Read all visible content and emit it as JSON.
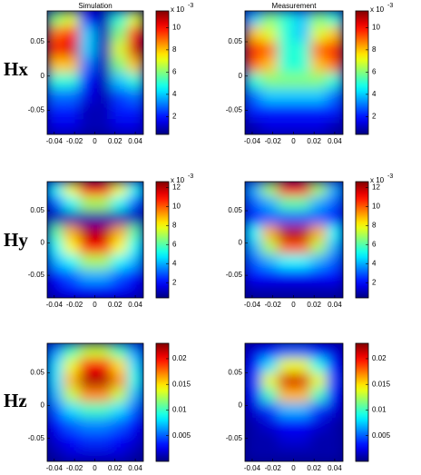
{
  "row_labels": [
    "Hx",
    "Hy",
    "Hz"
  ],
  "chart_data": [
    {
      "type": "heatmap",
      "title": "Simulation",
      "xlim": [
        -0.047,
        0.048
      ],
      "ylim": [
        -0.085,
        0.095
      ],
      "xticks": [
        -0.04,
        -0.02,
        0,
        0.02,
        0.04
      ],
      "yticks": [
        0.05,
        0,
        -0.05
      ],
      "colorbar": {
        "lim": [
          0.4,
          11.5
        ],
        "ticks": [
          2,
          4,
          6,
          8,
          10
        ],
        "multiplier": {
          "base": "x 10",
          "exponent": "-3"
        }
      },
      "z": [
        [
          6,
          7,
          2,
          1,
          5,
          7
        ],
        [
          9,
          10,
          4,
          1,
          6,
          10
        ],
        [
          10,
          10.5,
          4,
          1,
          7,
          10.5
        ],
        [
          8,
          8,
          3,
          1,
          6,
          8
        ],
        [
          5,
          5,
          2,
          1,
          4,
          5
        ],
        [
          3,
          3,
          1.5,
          1,
          2.5,
          3
        ],
        [
          2,
          2,
          1,
          1,
          2,
          2
        ],
        [
          1.5,
          1.5,
          1,
          1,
          1.5,
          1.5
        ]
      ]
    },
    {
      "type": "heatmap",
      "title": "Measurement",
      "xlim": [
        -0.047,
        0.048
      ],
      "ylim": [
        -0.085,
        0.095
      ],
      "xticks": [
        -0.04,
        -0.02,
        0,
        0.02,
        0.04
      ],
      "yticks": [
        0.05,
        0,
        -0.05
      ],
      "colorbar": {
        "lim": [
          0.4,
          11.5
        ],
        "ticks": [
          2,
          4,
          6,
          8,
          10
        ],
        "multiplier": {
          "base": "x 10",
          "exponent": "-3"
        }
      },
      "z": [
        [
          4,
          6,
          5,
          4,
          6,
          5
        ],
        [
          8,
          7,
          5,
          4,
          7,
          8
        ],
        [
          10,
          9,
          5,
          5,
          9,
          10
        ],
        [
          9,
          8,
          5,
          5,
          8,
          9
        ],
        [
          5,
          6,
          6,
          6,
          6,
          5
        ],
        [
          3,
          4,
          4,
          4,
          4,
          3
        ],
        [
          2,
          2,
          2,
          2,
          2,
          2
        ],
        [
          1,
          1.5,
          1.5,
          1.5,
          1.5,
          1
        ]
      ]
    },
    {
      "type": "heatmap",
      "xlim": [
        -0.047,
        0.048
      ],
      "ylim": [
        -0.085,
        0.095
      ],
      "xticks": [
        -0.04,
        -0.02,
        0,
        0.02,
        0.04
      ],
      "yticks": [
        0.05,
        0,
        -0.05
      ],
      "colorbar": {
        "lim": [
          0.4,
          12.6
        ],
        "ticks": [
          2,
          4,
          6,
          8,
          10,
          12
        ],
        "multiplier": {
          "base": "x 10",
          "exponent": "-3"
        }
      },
      "z": [
        [
          5,
          8,
          11,
          11,
          8,
          5
        ],
        [
          3,
          5,
          7,
          7,
          5,
          3
        ],
        [
          1,
          1,
          1,
          1,
          1,
          1
        ],
        [
          6,
          9,
          12,
          12,
          9,
          6
        ],
        [
          5,
          8,
          11,
          11,
          8,
          5
        ],
        [
          4,
          5,
          7,
          7,
          5,
          4
        ],
        [
          2,
          3,
          4,
          4,
          3,
          2
        ],
        [
          1.5,
          2,
          2,
          2,
          2,
          1.5
        ]
      ]
    },
    {
      "type": "heatmap",
      "xlim": [
        -0.047,
        0.048
      ],
      "ylim": [
        -0.085,
        0.095
      ],
      "xticks": [
        -0.04,
        -0.02,
        0,
        0.02,
        0.04
      ],
      "yticks": [
        0.05,
        0,
        -0.05
      ],
      "colorbar": {
        "lim": [
          0.4,
          12.6
        ],
        "ticks": [
          2,
          4,
          6,
          8,
          10,
          12
        ],
        "multiplier": {
          "base": "x 10",
          "exponent": "-3"
        }
      },
      "z": [
        [
          4,
          7,
          11,
          11,
          7,
          4
        ],
        [
          3,
          4,
          6,
          6,
          4,
          3
        ],
        [
          2,
          3,
          3,
          3,
          3,
          2
        ],
        [
          5,
          9,
          12,
          12,
          9,
          5
        ],
        [
          4,
          7,
          10,
          10,
          7,
          4
        ],
        [
          3,
          4,
          5,
          5,
          4,
          3
        ],
        [
          2,
          2,
          2,
          2,
          2,
          2
        ],
        [
          1,
          1,
          1,
          1,
          1,
          1
        ]
      ]
    },
    {
      "type": "heatmap",
      "xlim": [
        -0.047,
        0.048
      ],
      "ylim": [
        -0.085,
        0.095
      ],
      "xticks": [
        -0.04,
        -0.02,
        0,
        0.02,
        0.04
      ],
      "yticks": [
        0.05,
        0,
        -0.05
      ],
      "colorbar": {
        "lim": [
          0,
          0.023
        ],
        "ticks": [
          0.005,
          0.01,
          0.015,
          0.02
        ]
      },
      "z": [
        [
          0.006,
          0.01,
          0.013,
          0.013,
          0.01,
          0.006
        ],
        [
          0.008,
          0.014,
          0.02,
          0.02,
          0.015,
          0.008
        ],
        [
          0.008,
          0.016,
          0.022,
          0.022,
          0.017,
          0.009
        ],
        [
          0.007,
          0.013,
          0.017,
          0.017,
          0.013,
          0.007
        ],
        [
          0.005,
          0.008,
          0.01,
          0.01,
          0.008,
          0.005
        ],
        [
          0.003,
          0.005,
          0.006,
          0.006,
          0.005,
          0.003
        ],
        [
          0.002,
          0.003,
          0.004,
          0.004,
          0.003,
          0.002
        ],
        [
          0.001,
          0.002,
          0.002,
          0.002,
          0.002,
          0.001
        ]
      ]
    },
    {
      "type": "heatmap",
      "xlim": [
        -0.047,
        0.048
      ],
      "ylim": [
        -0.085,
        0.095
      ],
      "xticks": [
        -0.04,
        -0.02,
        0,
        0.02,
        0.04
      ],
      "yticks": [
        0.05,
        0,
        -0.05
      ],
      "colorbar": {
        "lim": [
          0,
          0.023
        ],
        "ticks": [
          0.005,
          0.01,
          0.015,
          0.02
        ]
      },
      "z": [
        [
          0.002,
          0.003,
          0.005,
          0.005,
          0.003,
          0.002
        ],
        [
          0.003,
          0.008,
          0.014,
          0.014,
          0.009,
          0.003
        ],
        [
          0.004,
          0.014,
          0.021,
          0.021,
          0.014,
          0.004
        ],
        [
          0.003,
          0.01,
          0.016,
          0.016,
          0.01,
          0.003
        ],
        [
          0.002,
          0.004,
          0.007,
          0.007,
          0.004,
          0.002
        ],
        [
          0.001,
          0.002,
          0.003,
          0.003,
          0.002,
          0.001
        ],
        [
          0.001,
          0.001,
          0.002,
          0.002,
          0.001,
          0.001
        ],
        [
          0.001,
          0.001,
          0.001,
          0.001,
          0.001,
          0.001
        ]
      ]
    }
  ]
}
